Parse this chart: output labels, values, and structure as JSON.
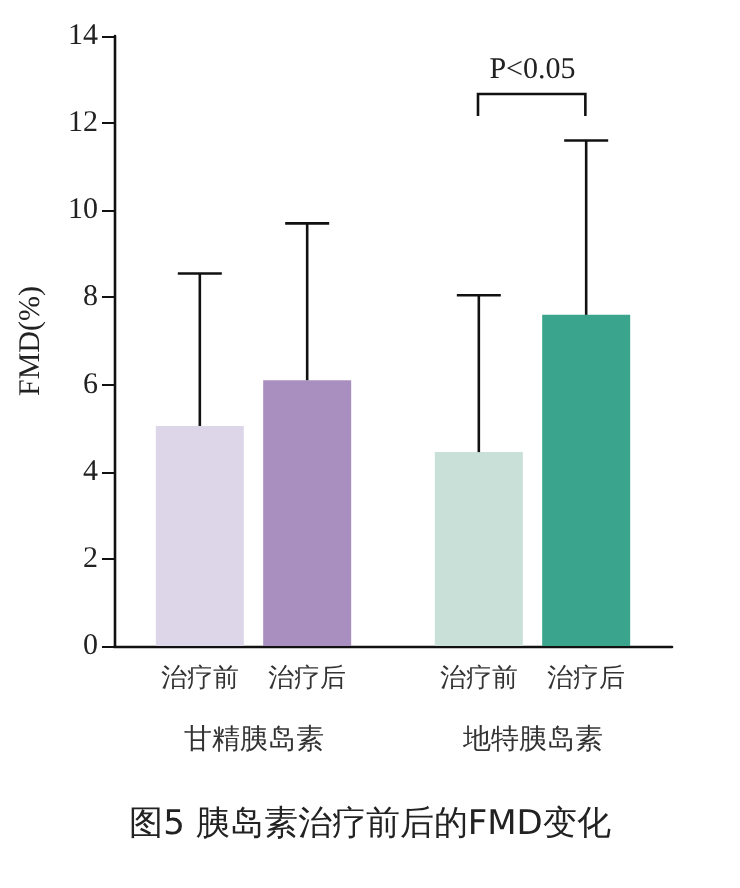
{
  "chart_data": {
    "type": "bar",
    "title": "图5 胰岛素治疗前后的FMD变化",
    "ylabel": "FMD(%)",
    "categories": [
      "甘精胰岛素",
      "地特胰岛素"
    ],
    "series": [
      {
        "name": "治疗前",
        "colors": [
          "#ddd5e8",
          "#c9e0d8"
        ],
        "values": [
          5.05,
          4.45
        ],
        "errors": [
          [
            5.05,
            8.55
          ],
          [
            4.45,
            8.05
          ]
        ]
      },
      {
        "name": "治疗后",
        "colors": [
          "#a98fc0",
          "#3aa58c"
        ],
        "values": [
          6.1,
          7.6
        ],
        "errors": [
          [
            6.1,
            9.7
          ],
          [
            7.6,
            11.6
          ]
        ]
      }
    ],
    "ylim": [
      0,
      14
    ],
    "yticks": [
      0,
      2,
      4,
      6,
      8,
      10,
      12,
      14
    ],
    "grid": false,
    "legend": false,
    "annotations": [
      "P<0.05"
    ]
  }
}
